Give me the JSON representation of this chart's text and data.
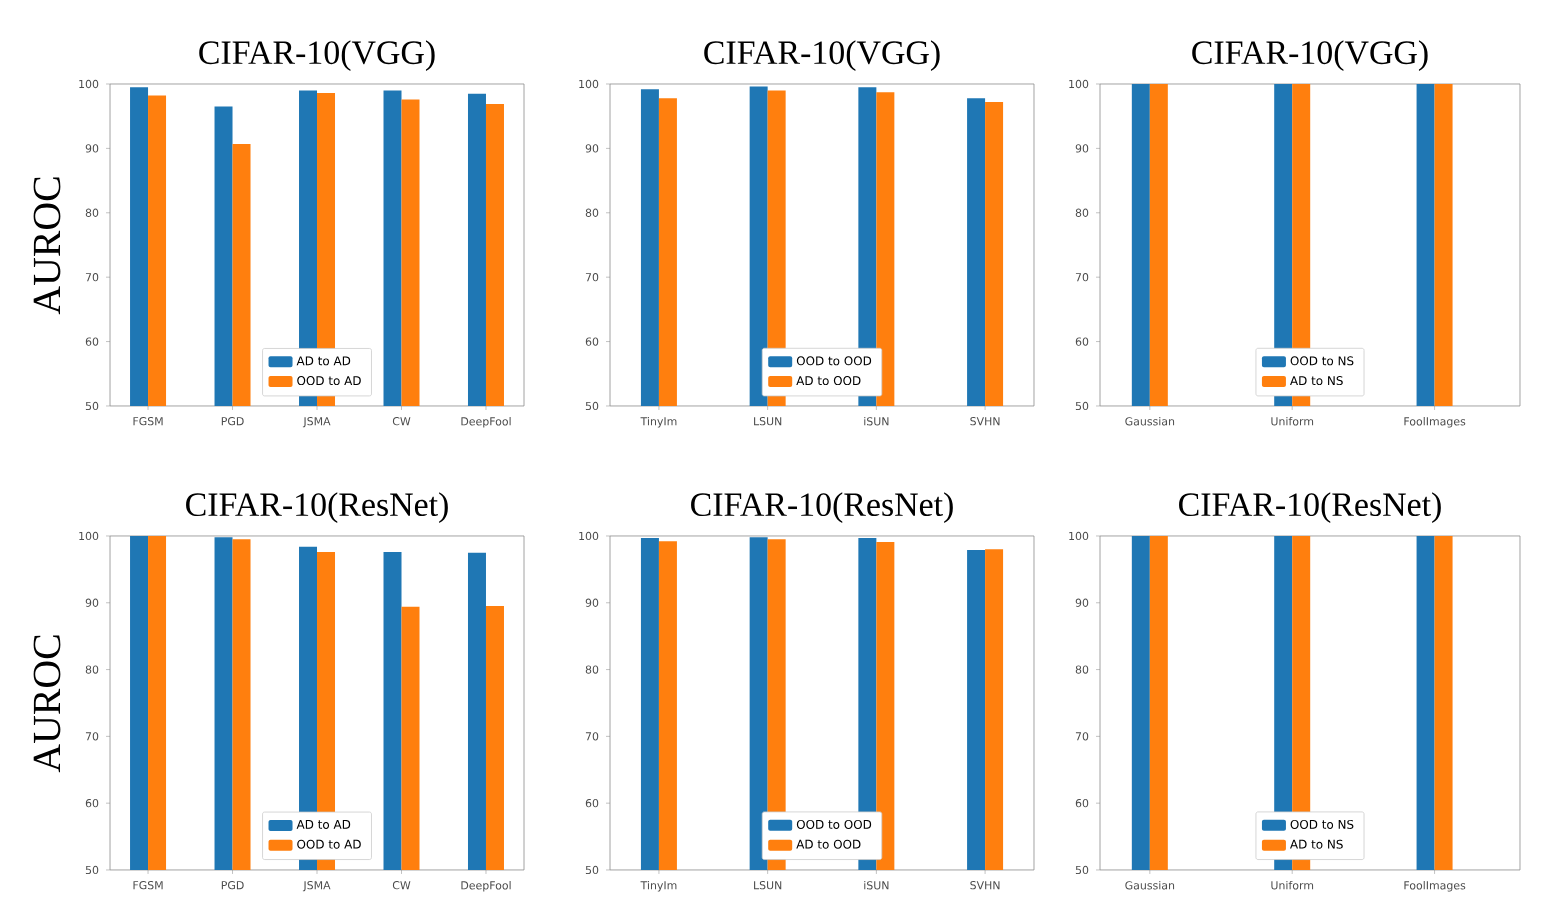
{
  "chart_data": [
    {
      "type": "bar",
      "title": "CIFAR-10(VGG)",
      "ylabel": "AUROC",
      "categories": [
        "FGSM",
        "PGD",
        "JSMA",
        "CW",
        "DeepFool"
      ],
      "series": [
        {
          "name": "AD to AD",
          "color": "#1f77b4",
          "values": [
            99.5,
            96.5,
            99.0,
            99.0,
            98.5
          ]
        },
        {
          "name": "OOD to AD",
          "color": "#ff7f0e",
          "values": [
            98.2,
            90.7,
            98.6,
            97.6,
            96.9
          ]
        }
      ],
      "ylim": [
        50,
        100
      ],
      "yticks": [
        50,
        60,
        70,
        80,
        90,
        100
      ],
      "legend": "bottom",
      "grid": false
    },
    {
      "type": "bar",
      "title": "CIFAR-10(VGG)",
      "categories": [
        "TinyIm",
        "LSUN",
        "iSUN",
        "SVHN"
      ],
      "series": [
        {
          "name": "OOD to OOD",
          "color": "#1f77b4",
          "values": [
            99.2,
            99.6,
            99.5,
            97.8
          ]
        },
        {
          "name": "AD to OOD",
          "color": "#ff7f0e",
          "values": [
            97.8,
            99.0,
            98.7,
            97.2
          ]
        }
      ],
      "ylim": [
        50,
        100
      ],
      "yticks": [
        50,
        60,
        70,
        80,
        90,
        100
      ],
      "legend": "bottom",
      "grid": false
    },
    {
      "type": "bar",
      "title": "CIFAR-10(VGG)",
      "categories": [
        "Gaussian",
        "Uniform",
        "FoolImages"
      ],
      "series": [
        {
          "name": "OOD to NS",
          "color": "#1f77b4",
          "values": [
            100,
            100,
            100
          ]
        },
        {
          "name": "AD to NS",
          "color": "#ff7f0e",
          "values": [
            100,
            100,
            100
          ]
        }
      ],
      "ylim": [
        50,
        100
      ],
      "yticks": [
        50,
        60,
        70,
        80,
        90,
        100
      ],
      "legend": "bottom",
      "grid": false
    },
    {
      "type": "bar",
      "title": "CIFAR-10(ResNet)",
      "ylabel": "AUROC",
      "categories": [
        "FGSM",
        "PGD",
        "JSMA",
        "CW",
        "DeepFool"
      ],
      "series": [
        {
          "name": "AD to AD",
          "color": "#1f77b4",
          "values": [
            100,
            99.8,
            98.4,
            97.6,
            97.5
          ]
        },
        {
          "name": "OOD to AD",
          "color": "#ff7f0e",
          "values": [
            100,
            99.5,
            97.6,
            89.4,
            89.5
          ]
        }
      ],
      "ylim": [
        50,
        100
      ],
      "yticks": [
        50,
        60,
        70,
        80,
        90,
        100
      ],
      "legend": "bottom",
      "grid": false
    },
    {
      "type": "bar",
      "title": "CIFAR-10(ResNet)",
      "categories": [
        "TinyIm",
        "LSUN",
        "iSUN",
        "SVHN"
      ],
      "series": [
        {
          "name": "OOD to OOD",
          "color": "#1f77b4",
          "values": [
            99.7,
            99.8,
            99.7,
            97.9
          ]
        },
        {
          "name": "AD to OOD",
          "color": "#ff7f0e",
          "values": [
            99.2,
            99.5,
            99.1,
            98.0
          ]
        }
      ],
      "ylim": [
        50,
        100
      ],
      "yticks": [
        50,
        60,
        70,
        80,
        90,
        100
      ],
      "legend": "bottom",
      "grid": false
    },
    {
      "type": "bar",
      "title": "CIFAR-10(ResNet)",
      "categories": [
        "Gaussian",
        "Uniform",
        "FoolImages"
      ],
      "series": [
        {
          "name": "OOD to NS",
          "color": "#1f77b4",
          "values": [
            100,
            100,
            100
          ]
        },
        {
          "name": "AD to NS",
          "color": "#ff7f0e",
          "values": [
            100,
            100,
            100
          ]
        }
      ],
      "ylim": [
        50,
        100
      ],
      "yticks": [
        50,
        60,
        70,
        80,
        90,
        100
      ],
      "legend": "bottom",
      "grid": false
    }
  ]
}
